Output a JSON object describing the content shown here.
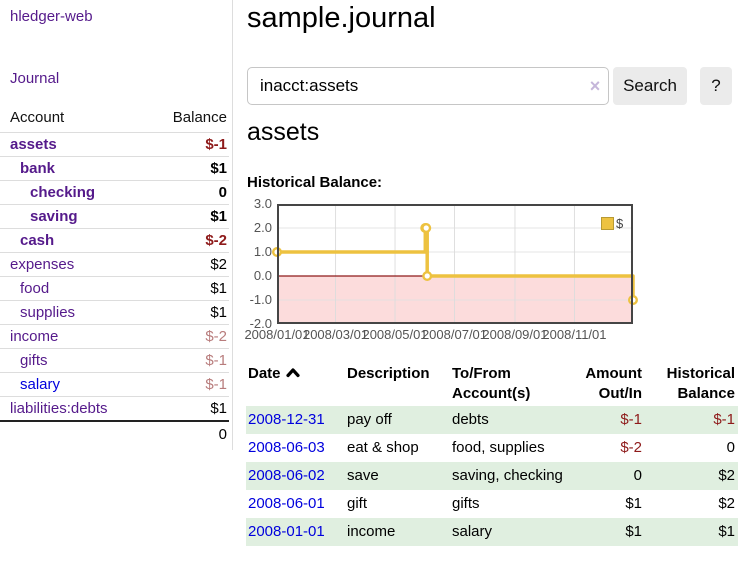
{
  "sidebar": {
    "brand": "hledger-web",
    "nav": {
      "journal": "Journal"
    },
    "accounts_table": {
      "headers": {
        "account": "Account",
        "balance": "Balance"
      },
      "rows": [
        {
          "name": "assets",
          "indent": 1,
          "bold": true,
          "balance": "$-1",
          "balance_style": "neg-strong"
        },
        {
          "name": "bank",
          "indent": 2,
          "bold": true,
          "balance": "$1",
          "balance_style": "pos-strong"
        },
        {
          "name": "checking",
          "indent": 3,
          "bold": true,
          "balance": "0",
          "balance_style": "pos-strong"
        },
        {
          "name": "saving",
          "indent": 3,
          "bold": true,
          "balance": "$1",
          "balance_style": "pos-strong"
        },
        {
          "name": "cash",
          "indent": 2,
          "bold": true,
          "balance": "$-2",
          "balance_style": "neg-strong"
        },
        {
          "name": "expenses",
          "indent": 1,
          "bold": false,
          "balance": "$2",
          "balance_style": "pos"
        },
        {
          "name": "food",
          "indent": 2,
          "bold": false,
          "balance": "$1",
          "balance_style": "pos"
        },
        {
          "name": "supplies",
          "indent": 2,
          "bold": false,
          "balance": "$1",
          "balance_style": "pos"
        },
        {
          "name": "income",
          "indent": 1,
          "bold": false,
          "balance": "$-2",
          "balance_style": "neg-muted"
        },
        {
          "name": "gifts",
          "indent": 2,
          "bold": false,
          "balance": "$-1",
          "balance_style": "neg-muted"
        },
        {
          "name": "salary",
          "indent": 2,
          "bold": false,
          "link": "blue",
          "balance": "$-1",
          "balance_style": "neg-muted"
        },
        {
          "name": "liabilities:debts",
          "indent": 1,
          "bold": false,
          "balance": "$1",
          "balance_style": "pos"
        }
      ],
      "total": "0"
    }
  },
  "header": {
    "title": "sample.journal"
  },
  "search": {
    "value": "inacct:assets",
    "clear_icon": "×",
    "search_button": "Search",
    "help_button": "?"
  },
  "main": {
    "account_title": "assets",
    "chart_label": "Historical Balance:"
  },
  "chart_data": {
    "type": "line",
    "step": true,
    "title": "Historical Balance",
    "series": [
      {
        "name": "$",
        "color": "#edc240",
        "points": [
          [
            "2008-01-01",
            1
          ],
          [
            "2008-06-01",
            2
          ],
          [
            "2008-06-02",
            2
          ],
          [
            "2008-06-03",
            0
          ],
          [
            "2008-12-31",
            -1
          ]
        ]
      }
    ],
    "ylim": [
      -2,
      3
    ],
    "yticks": [
      "3.0",
      "2.0",
      "1.0",
      "0.0",
      "-1.0",
      "-2.0"
    ],
    "xticks": [
      {
        "date": "2008-01-01",
        "label": "2008/01/01"
      },
      {
        "date": "2008-03-01",
        "label": "2008/03/01"
      },
      {
        "date": "2008-05-01",
        "label": "2008/05/01"
      },
      {
        "date": "2008-07-01",
        "label": "2008/07/01"
      },
      {
        "date": "2008-09-01",
        "label": "2008/09/01"
      },
      {
        "date": "2008-11-01",
        "label": "2008/11/01"
      }
    ],
    "x_range": [
      "2008-01-01",
      "2008-12-31"
    ],
    "legend_position": "top-right",
    "grid": true,
    "negative_region_color": "#fcdcdc",
    "zero_line_color": "#8e1a1a"
  },
  "register": {
    "headers": {
      "date": "Date",
      "description": "Description",
      "accounts": "To/From Account(s)",
      "amount": "Amount Out/In",
      "balance": "Historical Balance"
    },
    "rows": [
      {
        "date": "2008-12-31",
        "description": "pay off",
        "accounts": "debts",
        "amount": "$-1",
        "amount_neg": true,
        "balance": "$-1",
        "balance_neg": true
      },
      {
        "date": "2008-06-03",
        "description": "eat & shop",
        "accounts": "food, supplies",
        "amount": "$-2",
        "amount_neg": true,
        "balance": "0",
        "balance_neg": false
      },
      {
        "date": "2008-06-02",
        "description": "save",
        "accounts": "saving, checking",
        "amount": "0",
        "amount_neg": false,
        "balance": "$2",
        "balance_neg": false
      },
      {
        "date": "2008-06-01",
        "description": "gift",
        "accounts": "gifts",
        "amount": "$1",
        "amount_neg": false,
        "balance": "$2",
        "balance_neg": false
      },
      {
        "date": "2008-01-01",
        "description": "income",
        "accounts": "salary",
        "amount": "$1",
        "amount_neg": false,
        "balance": "$1",
        "balance_neg": false
      }
    ]
  },
  "colors": {
    "link_purple": "#551a8b",
    "link_blue": "#0000dd",
    "negative_strong": "#8e1a1a",
    "negative_muted": "#b87c7c",
    "row_stripe_green": "#e0efe0",
    "series_gold": "#edc240",
    "chart_border": "#454545",
    "gridline": "#e2e2e2"
  }
}
